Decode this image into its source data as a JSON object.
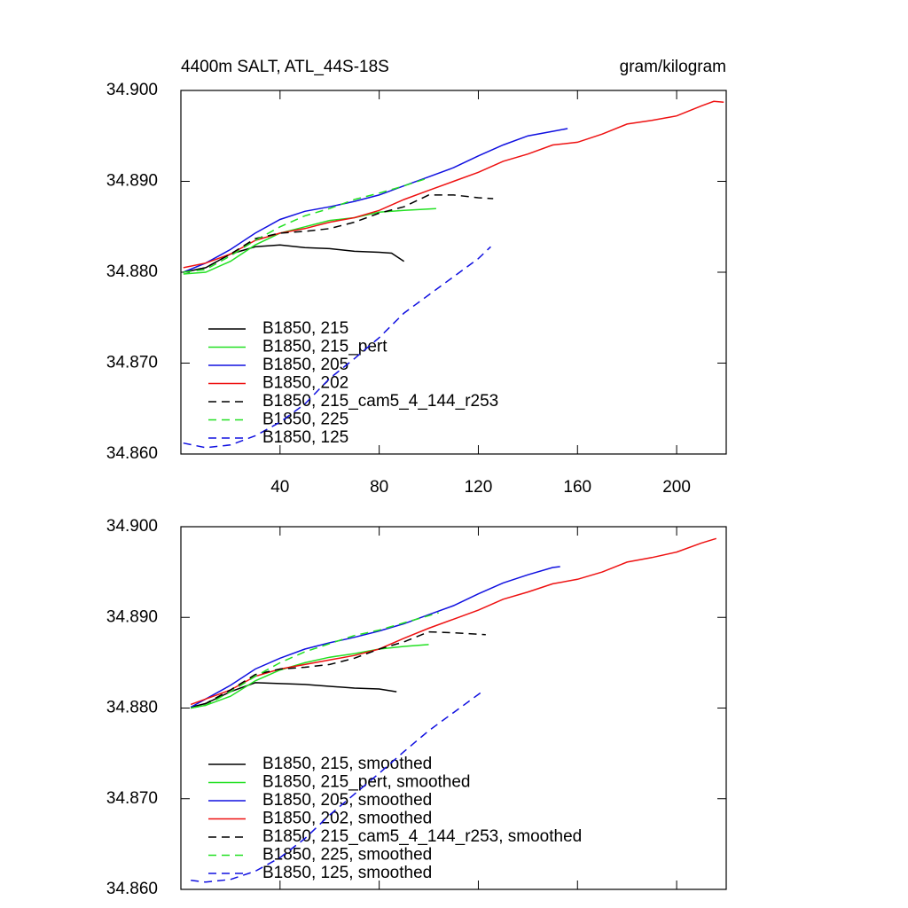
{
  "chart_data": [
    {
      "type": "line",
      "title": "4400m SALT, ATL_44S-18S",
      "units": "gram/kilogram",
      "xlim": [
        0,
        220
      ],
      "xticks": [
        40,
        80,
        120,
        160,
        200
      ],
      "xtick_labels": true,
      "ylim": [
        34.86,
        34.9
      ],
      "yticks": [
        {
          "value": 34.86,
          "label": "34.860"
        },
        {
          "value": 34.87,
          "label": "34.870"
        },
        {
          "value": 34.88,
          "label": "34.880"
        },
        {
          "value": 34.89,
          "label": "34.890"
        },
        {
          "value": 34.9,
          "label": "34.900"
        }
      ],
      "legend": "lower left",
      "series": [
        {
          "name": "B1850, 215",
          "color": "#000000",
          "dash": false,
          "x": [
            1,
            10,
            20,
            30,
            40,
            50,
            60,
            70,
            80,
            85,
            90
          ],
          "values": [
            34.88,
            34.8805,
            34.882,
            34.8828,
            34.883,
            34.8827,
            34.8826,
            34.8823,
            34.8822,
            34.8821,
            34.8812
          ]
        },
        {
          "name": "B1850, 215_pert",
          "color": "#22e022",
          "dash": false,
          "x": [
            1,
            10,
            20,
            30,
            40,
            50,
            60,
            70,
            80,
            90,
            103
          ],
          "values": [
            34.8798,
            34.88,
            34.8812,
            34.883,
            34.8843,
            34.885,
            34.8857,
            34.886,
            34.8866,
            34.8868,
            34.887
          ]
        },
        {
          "name": "B1850, 205",
          "color": "#1010e0",
          "dash": false,
          "x": [
            1,
            10,
            20,
            30,
            40,
            50,
            60,
            70,
            80,
            90,
            100,
            110,
            120,
            130,
            140,
            150,
            156
          ],
          "values": [
            34.88,
            34.881,
            34.8825,
            34.8843,
            34.8858,
            34.8867,
            34.8872,
            34.8878,
            34.8885,
            34.8895,
            34.8905,
            34.8915,
            34.8928,
            34.894,
            34.895,
            34.8955,
            34.8958
          ]
        },
        {
          "name": "B1850, 202",
          "color": "#ee1111",
          "dash": false,
          "x": [
            1,
            10,
            20,
            30,
            40,
            50,
            60,
            70,
            80,
            90,
            100,
            110,
            120,
            130,
            140,
            150,
            160,
            170,
            180,
            190,
            200,
            210,
            215,
            219
          ],
          "values": [
            34.8805,
            34.881,
            34.882,
            34.8835,
            34.8843,
            34.8848,
            34.8855,
            34.886,
            34.8868,
            34.888,
            34.889,
            34.89,
            34.891,
            34.8922,
            34.893,
            34.894,
            34.8943,
            34.8952,
            34.8963,
            34.8967,
            34.8972,
            34.8983,
            34.8988,
            34.8987
          ]
        },
        {
          "name": "B1850, 215_cam5_4_144_r253",
          "color": "#000000",
          "dash": true,
          "x": [
            1,
            10,
            20,
            30,
            40,
            50,
            60,
            70,
            80,
            90,
            100,
            110,
            120,
            126
          ],
          "values": [
            34.88,
            34.8805,
            34.882,
            34.8837,
            34.8843,
            34.8845,
            34.8848,
            34.8855,
            34.8865,
            34.8872,
            34.8885,
            34.8885,
            34.8882,
            34.8881
          ]
        },
        {
          "name": "B1850, 225",
          "color": "#22e022",
          "dash": true,
          "x": [
            1,
            10,
            20,
            30,
            40,
            50,
            60,
            70,
            80,
            90,
            99
          ],
          "values": [
            34.88,
            34.8803,
            34.8818,
            34.8835,
            34.885,
            34.8862,
            34.887,
            34.888,
            34.8887,
            34.8895,
            34.8903
          ]
        },
        {
          "name": "B1850, 125",
          "color": "#1010e0",
          "dash": true,
          "x": [
            1,
            10,
            20,
            30,
            40,
            50,
            60,
            70,
            80,
            90,
            100,
            110,
            120,
            125
          ],
          "values": [
            34.8612,
            34.8607,
            34.861,
            34.862,
            34.8635,
            34.8655,
            34.8683,
            34.8705,
            34.8728,
            34.8755,
            34.8775,
            34.8795,
            34.8815,
            34.8828
          ]
        }
      ]
    },
    {
      "type": "line",
      "xlim": [
        0,
        220
      ],
      "xticks": [
        40,
        80,
        120,
        160,
        200
      ],
      "xtick_labels": false,
      "ylim": [
        34.86,
        34.9
      ],
      "yticks": [
        {
          "value": 34.86,
          "label": "34.860"
        },
        {
          "value": 34.87,
          "label": "34.870"
        },
        {
          "value": 34.88,
          "label": "34.880"
        },
        {
          "value": 34.89,
          "label": "34.890"
        },
        {
          "value": 34.9,
          "label": "34.900"
        }
      ],
      "legend": "lower left",
      "series": [
        {
          "name": "B1850, 215, smoothed",
          "color": "#000000",
          "dash": false,
          "x": [
            4,
            10,
            20,
            30,
            40,
            50,
            60,
            70,
            80,
            87
          ],
          "values": [
            34.8801,
            34.8805,
            34.8818,
            34.8828,
            34.8827,
            34.8826,
            34.8824,
            34.8822,
            34.8821,
            34.8818
          ]
        },
        {
          "name": "B1850, 215_pert, smoothed",
          "color": "#22e022",
          "dash": false,
          "x": [
            4,
            10,
            20,
            30,
            40,
            50,
            60,
            70,
            80,
            90,
            100
          ],
          "values": [
            34.88,
            34.8803,
            34.8813,
            34.883,
            34.8842,
            34.885,
            34.8856,
            34.886,
            34.8865,
            34.8868,
            34.887
          ]
        },
        {
          "name": "B1850, 205, smoothed",
          "color": "#1010e0",
          "dash": false,
          "x": [
            4,
            10,
            20,
            30,
            40,
            50,
            60,
            70,
            80,
            90,
            100,
            110,
            120,
            130,
            140,
            150,
            153
          ],
          "values": [
            34.8801,
            34.881,
            34.8825,
            34.8843,
            34.8855,
            34.8865,
            34.8872,
            34.8878,
            34.8885,
            34.8893,
            34.8903,
            34.8913,
            34.8926,
            34.8938,
            34.8947,
            34.8955,
            34.8956
          ]
        },
        {
          "name": "B1850, 202, smoothed",
          "color": "#ee1111",
          "dash": false,
          "x": [
            4,
            10,
            20,
            30,
            40,
            50,
            60,
            70,
            80,
            90,
            100,
            110,
            120,
            130,
            140,
            150,
            160,
            170,
            180,
            190,
            200,
            210,
            216
          ],
          "values": [
            34.8804,
            34.881,
            34.882,
            34.8835,
            34.8843,
            34.8848,
            34.8853,
            34.8858,
            34.8865,
            34.8877,
            34.8888,
            34.8898,
            34.8908,
            34.892,
            34.8928,
            34.8937,
            34.8942,
            34.895,
            34.8961,
            34.8966,
            34.8972,
            34.8982,
            34.8987
          ]
        },
        {
          "name": "B1850, 215_cam5_4_144_r253, smoothed",
          "color": "#000000",
          "dash": true,
          "x": [
            4,
            10,
            20,
            30,
            40,
            50,
            60,
            70,
            80,
            90,
            100,
            110,
            123
          ],
          "values": [
            34.88,
            34.8805,
            34.882,
            34.8837,
            34.8843,
            34.8845,
            34.8848,
            34.8855,
            34.8865,
            34.8873,
            34.8884,
            34.8883,
            34.8881
          ]
        },
        {
          "name": "B1850, 225, smoothed",
          "color": "#22e022",
          "dash": true,
          "x": [
            4,
            10,
            20,
            30,
            40,
            50,
            60,
            70,
            80,
            90,
            104
          ],
          "values": [
            34.88,
            34.8803,
            34.8818,
            34.8835,
            34.885,
            34.8862,
            34.8871,
            34.888,
            34.8886,
            34.8894,
            34.8905
          ]
        },
        {
          "name": "B1850, 125, smoothed",
          "color": "#1010e0",
          "dash": true,
          "x": [
            4,
            10,
            20,
            30,
            40,
            50,
            60,
            70,
            80,
            90,
            100,
            110,
            122
          ],
          "values": [
            34.861,
            34.8608,
            34.8611,
            34.862,
            34.8635,
            34.8656,
            34.8682,
            34.8705,
            34.8728,
            34.8752,
            34.8775,
            34.8795,
            34.8819
          ]
        }
      ]
    }
  ]
}
